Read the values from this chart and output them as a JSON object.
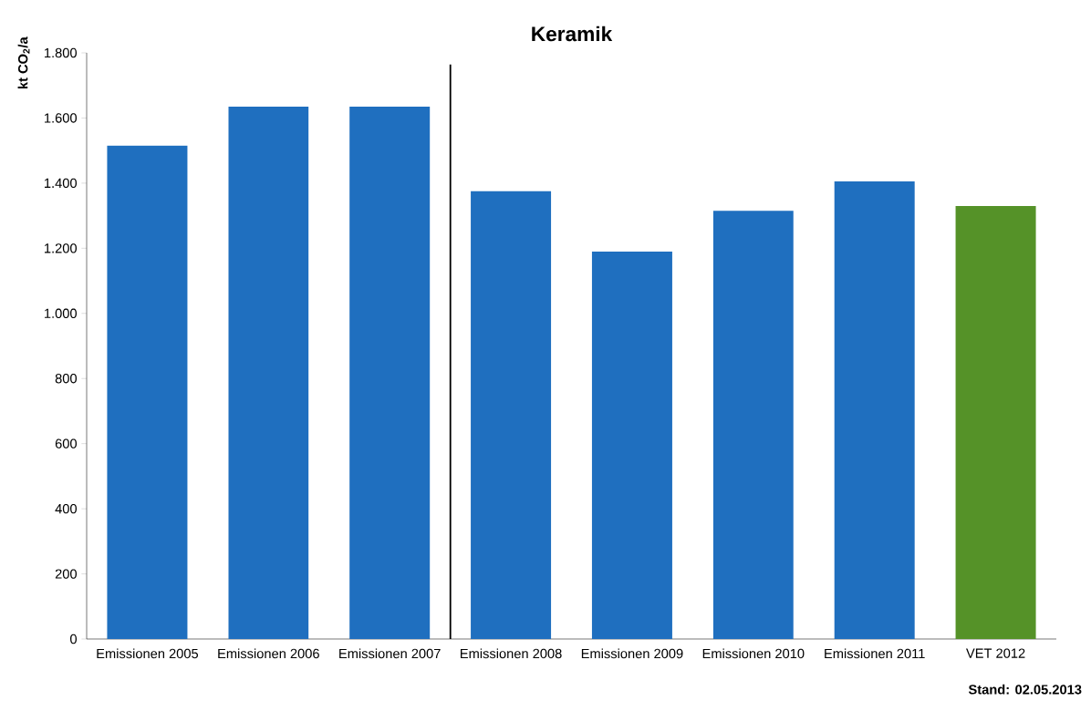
{
  "chart_data": {
    "type": "bar",
    "title": "**Keramik**",
    "ylabel": "kt CO$_{2}$/a",
    "categories": [
      "Emissionen 2005",
      "Emissionen 2006",
      "Emissionen 2007",
      "Emissionen 2008",
      "Emissionen 2009",
      "Emissionen 2010",
      "Emissionen 2011",
      "VET 2012"
    ],
    "values": [
      1515,
      1635,
      1635,
      1375,
      1190,
      1315,
      1405,
      1330
    ],
    "colors": [
      "#1f6fbf",
      "#1f6fbf",
      "#1f6fbf",
      "#1f6fbf",
      "#1f6fbf",
      "#1f6fbf",
      "#1f6fbf",
      "#559228"
    ],
    "ylim": [
      0,
      1800
    ],
    "yticks": [
      0,
      200,
      400,
      600,
      800,
      {
        "value": 1000,
        "label": "1.000"
      },
      {
        "value": 1200,
        "label": "1.200"
      },
      {
        "value": 1400,
        "label": "1.400"
      },
      {
        "value": 1600,
        "label": "1.600"
      },
      {
        "value": 1800,
        "label": "1.800"
      }
    ],
    "annotations": [
      "Stand: 02.05.2013"
    ],
    "grid": false
  }
}
